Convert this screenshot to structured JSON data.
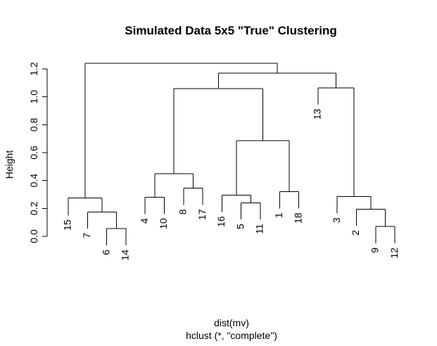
{
  "chart_data": {
    "type": "dendrogram",
    "title": "Simulated Data 5x5 \"True\" Clustering",
    "ylabel": "Height",
    "xlabel": "dist(mv)",
    "sublabel": "hclust (*, \"complete\")",
    "ylim": [
      0,
      1.25
    ],
    "yticks": [
      "0.0",
      "0.2",
      "0.4",
      "0.6",
      "0.8",
      "1.0",
      "1.2"
    ],
    "ytick_values": [
      0,
      0.2,
      0.4,
      0.6,
      0.8,
      1.0,
      1.2
    ],
    "leaves": [
      "15",
      "7",
      "6",
      "14",
      "4",
      "10",
      "8",
      "17",
      "16",
      "5",
      "11",
      "1",
      "18",
      "13",
      "3",
      "2",
      "9",
      "12"
    ],
    "merges": [
      {
        "left": "leaf:6",
        "right": "leaf:14",
        "height": 0.055
      },
      {
        "left": "leaf:7",
        "right": "node:0",
        "height": 0.175
      },
      {
        "left": "leaf:15",
        "right": "node:1",
        "height": 0.275
      },
      {
        "left": "leaf:4",
        "right": "leaf:10",
        "height": 0.28
      },
      {
        "left": "leaf:8",
        "right": "leaf:17",
        "height": 0.345
      },
      {
        "left": "node:3",
        "right": "node:4",
        "height": 0.45
      },
      {
        "left": "leaf:5",
        "right": "leaf:11",
        "height": 0.24
      },
      {
        "left": "leaf:16",
        "right": "node:6",
        "height": 0.295
      },
      {
        "left": "leaf:1",
        "right": "leaf:18",
        "height": 0.32
      },
      {
        "left": "node:7",
        "right": "node:8",
        "height": 0.685
      },
      {
        "left": "node:5",
        "right": "node:9",
        "height": 1.06
      },
      {
        "left": "leaf:9",
        "right": "leaf:12",
        "height": 0.07
      },
      {
        "left": "leaf:2",
        "right": "node:11",
        "height": 0.195
      },
      {
        "left": "leaf:3",
        "right": "node:12",
        "height": 0.285
      },
      {
        "left": "leaf:13",
        "right": "node:13",
        "height": 1.065
      },
      {
        "left": "node:10",
        "right": "node:14",
        "height": 1.17
      },
      {
        "left": "node:2",
        "right": "node:15",
        "height": 1.24
      }
    ],
    "leaf_heights": {
      "15": 0.15,
      "7": 0.055,
      "6": -0.065,
      "14": -0.065,
      "4": 0.16,
      "10": 0.16,
      "8": 0.225,
      "17": 0.225,
      "16": 0.175,
      "5": 0.12,
      "11": 0.12,
      "1": 0.2,
      "18": 0.2,
      "13": 0.945,
      "3": 0.165,
      "2": 0.075,
      "9": -0.05,
      "12": -0.05
    }
  }
}
